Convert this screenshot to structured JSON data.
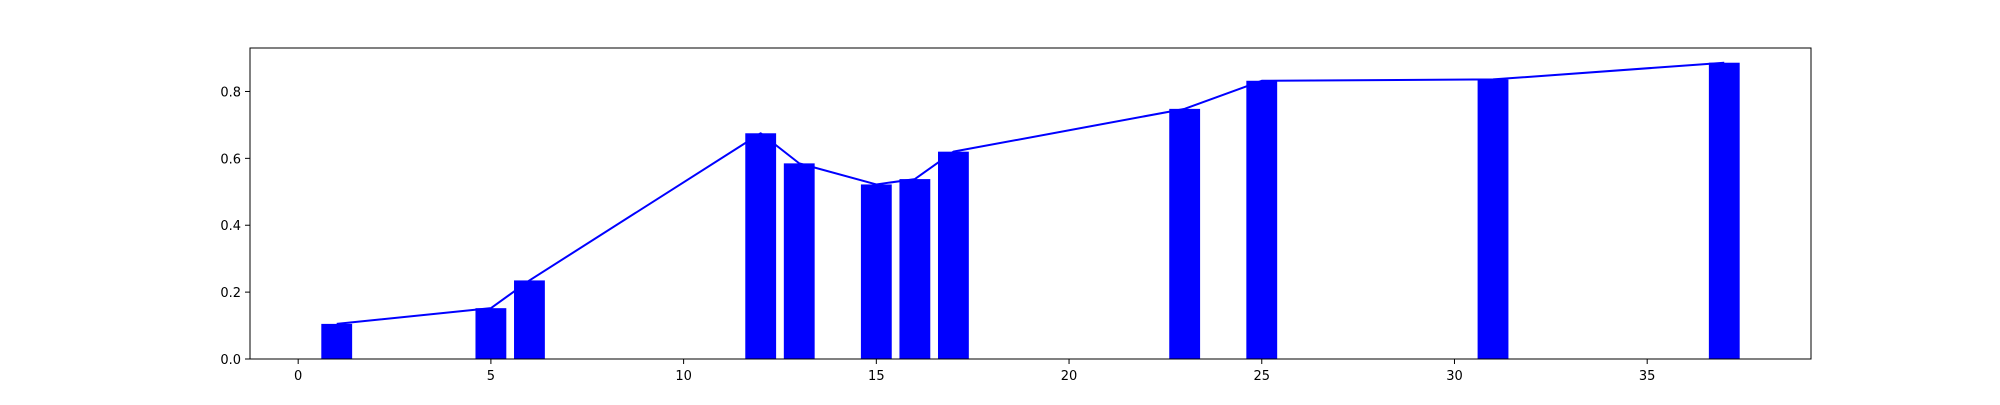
{
  "chart_data": {
    "type": "bar",
    "title": "",
    "xlabel": "",
    "ylabel": "",
    "xlim": [
      -1.25,
      39.25
    ],
    "ylim": [
      0,
      0.93
    ],
    "xticks": [
      0,
      5,
      10,
      15,
      20,
      25,
      30,
      35
    ],
    "yticks": [
      0.0,
      0.2,
      0.4,
      0.6,
      0.8
    ],
    "xtick_labels": [
      "0",
      "5",
      "10",
      "15",
      "20",
      "25",
      "30",
      "35"
    ],
    "ytick_labels": [
      "0.0",
      "0.2",
      "0.4",
      "0.6",
      "0.8"
    ],
    "grid": false,
    "legend": false,
    "bar_color": "#0000ff",
    "line_color": "#0000ff",
    "series": [
      {
        "type": "bar",
        "x": [
          1,
          5,
          6,
          12,
          13,
          15,
          16,
          17,
          23,
          25,
          31,
          37
        ],
        "values": [
          0.105,
          0.152,
          0.235,
          0.675,
          0.585,
          0.522,
          0.538,
          0.62,
          0.748,
          0.832,
          0.836,
          0.886
        ]
      },
      {
        "type": "line",
        "x": [
          1,
          5,
          6,
          12,
          13,
          15,
          16,
          17,
          23,
          25,
          31,
          37
        ],
        "values": [
          0.105,
          0.152,
          0.235,
          0.675,
          0.585,
          0.522,
          0.538,
          0.62,
          0.748,
          0.832,
          0.836,
          0.886
        ]
      }
    ]
  }
}
